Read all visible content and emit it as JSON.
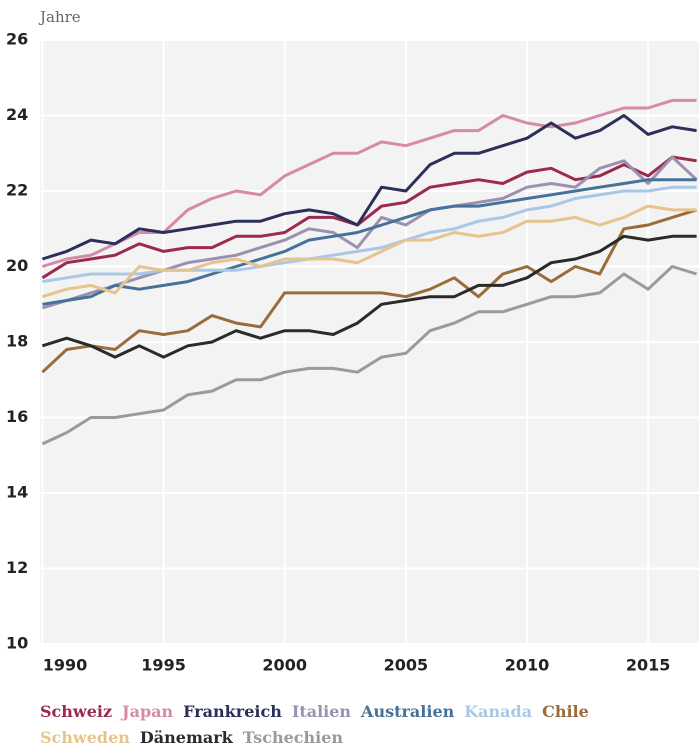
{
  "chart_data": {
    "type": "line",
    "y_label": "Jahre",
    "x": [
      1990,
      1991,
      1992,
      1993,
      1994,
      1995,
      1996,
      1997,
      1998,
      1999,
      2000,
      2001,
      2002,
      2003,
      2004,
      2005,
      2006,
      2007,
      2008,
      2009,
      2010,
      2011,
      2012,
      2013,
      2014,
      2015,
      2016,
      2017
    ],
    "xlim": [
      1989.9,
      2017.1
    ],
    "xticks": [
      1990,
      1995,
      2000,
      2005,
      2010,
      2015
    ],
    "ylim": [
      10,
      26
    ],
    "yticks": [
      10,
      12,
      14,
      16,
      18,
      20,
      22,
      24,
      26
    ],
    "grid": true,
    "series": [
      {
        "name": "Schweiz",
        "color": "#9b2a4e",
        "values": [
          19.7,
          20.1,
          20.2,
          20.3,
          20.6,
          20.4,
          20.5,
          20.5,
          20.8,
          20.8,
          20.9,
          21.3,
          21.3,
          21.1,
          21.6,
          21.7,
          22.1,
          22.2,
          22.3,
          22.2,
          22.5,
          22.6,
          22.3,
          22.4,
          22.7,
          22.4,
          22.9,
          22.8
        ]
      },
      {
        "name": "Japan",
        "color": "#d68aa9",
        "values": [
          20.0,
          20.2,
          20.3,
          20.6,
          20.9,
          20.9,
          21.5,
          21.8,
          22.0,
          21.9,
          22.4,
          22.7,
          23.0,
          23.0,
          23.3,
          23.2,
          23.4,
          23.6,
          23.6,
          24.0,
          23.8,
          23.7,
          23.8,
          24.0,
          24.2,
          24.2,
          24.4,
          24.4
        ]
      },
      {
        "name": "Frankreich",
        "color": "#2c2f5a",
        "values": [
          20.2,
          20.4,
          20.7,
          20.6,
          21.0,
          20.9,
          21.0,
          21.1,
          21.2,
          21.2,
          21.4,
          21.5,
          21.4,
          21.1,
          22.1,
          22.0,
          22.7,
          23.0,
          23.0,
          23.2,
          23.4,
          23.8,
          23.4,
          23.6,
          24.0,
          23.5,
          23.7,
          23.6
        ]
      },
      {
        "name": "Italien",
        "color": "#9a90b0",
        "values": [
          18.9,
          19.1,
          19.3,
          19.5,
          19.7,
          19.9,
          20.1,
          20.2,
          20.3,
          20.5,
          20.7,
          21.0,
          20.9,
          20.5,
          21.3,
          21.1,
          21.5,
          21.6,
          21.7,
          21.8,
          22.1,
          22.2,
          22.1,
          22.6,
          22.8,
          22.2,
          22.9,
          22.3
        ]
      },
      {
        "name": "Australien",
        "color": "#46729a",
        "values": [
          19.0,
          19.1,
          19.2,
          19.5,
          19.4,
          19.5,
          19.6,
          19.8,
          20.0,
          20.2,
          20.4,
          20.7,
          20.8,
          20.9,
          21.1,
          21.3,
          21.5,
          21.6,
          21.6,
          21.7,
          21.8,
          21.9,
          22.0,
          22.1,
          22.2,
          22.3,
          22.3,
          22.3
        ]
      },
      {
        "name": "Kanada",
        "color": "#a9c8e8",
        "values": [
          19.6,
          19.7,
          19.8,
          19.8,
          19.8,
          19.9,
          19.9,
          19.9,
          19.9,
          20.0,
          20.1,
          20.2,
          20.3,
          20.4,
          20.5,
          20.7,
          20.9,
          21.0,
          21.2,
          21.3,
          21.5,
          21.6,
          21.8,
          21.9,
          22.0,
          22.0,
          22.1,
          22.1
        ]
      },
      {
        "name": "Chile",
        "color": "#9a6c3c",
        "values": [
          17.2,
          17.8,
          17.9,
          17.8,
          18.3,
          18.2,
          18.3,
          18.7,
          18.5,
          18.4,
          19.3,
          19.3,
          19.3,
          19.3,
          19.3,
          19.2,
          19.4,
          19.7,
          19.2,
          19.8,
          20.0,
          19.6,
          20.0,
          19.8,
          21.0,
          21.1,
          21.3,
          21.5
        ]
      },
      {
        "name": "Schweden",
        "color": "#e5c48e",
        "values": [
          19.2,
          19.4,
          19.5,
          19.3,
          20.0,
          19.9,
          19.9,
          20.1,
          20.2,
          20.0,
          20.2,
          20.2,
          20.2,
          20.1,
          20.4,
          20.7,
          20.7,
          20.9,
          20.8,
          20.9,
          21.2,
          21.2,
          21.3,
          21.1,
          21.3,
          21.6,
          21.5,
          21.5
        ]
      },
      {
        "name": "Dänemark",
        "color": "#2a2a2a",
        "values": [
          17.9,
          18.1,
          17.9,
          17.6,
          17.9,
          17.6,
          17.9,
          18.0,
          18.3,
          18.1,
          18.3,
          18.3,
          18.2,
          18.5,
          19.0,
          19.1,
          19.2,
          19.2,
          19.5,
          19.5,
          19.7,
          20.1,
          20.2,
          20.4,
          20.8,
          20.7,
          20.8,
          20.8
        ]
      },
      {
        "name": "Tschechien",
        "color": "#9a9a9a",
        "values": [
          15.3,
          15.6,
          16.0,
          16.0,
          16.1,
          16.2,
          16.6,
          16.7,
          17.0,
          17.0,
          17.2,
          17.3,
          17.3,
          17.2,
          17.6,
          17.7,
          18.3,
          18.5,
          18.8,
          18.8,
          19.0,
          19.2,
          19.2,
          19.3,
          19.8,
          19.4,
          20.0,
          19.8
        ]
      }
    ]
  }
}
